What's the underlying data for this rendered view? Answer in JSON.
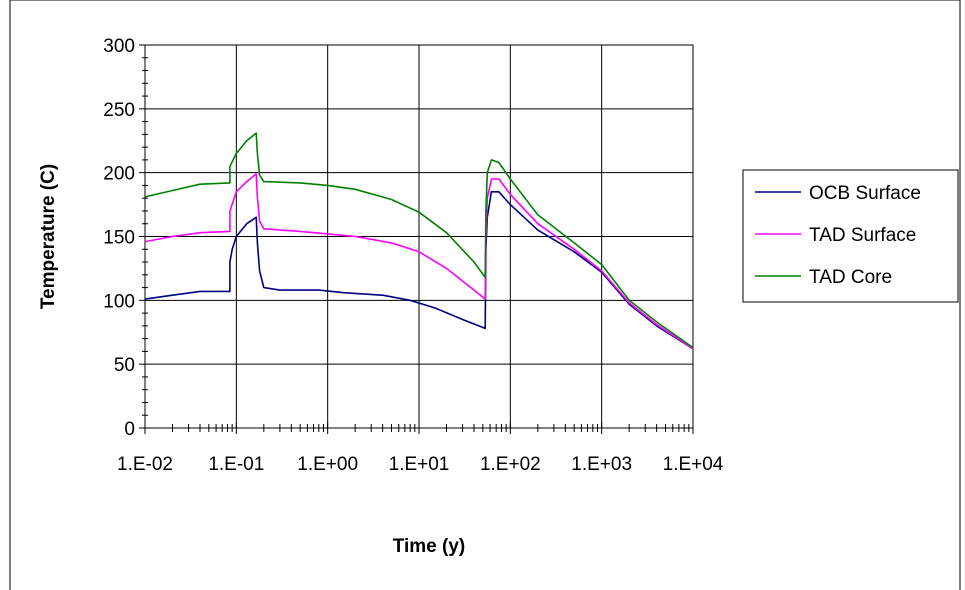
{
  "chart_data": {
    "type": "line",
    "xscale": "log",
    "xlabel": "Time (y)",
    "ylabel": "Temperature (C)",
    "xlim": [
      0.01,
      10000
    ],
    "ylim": [
      0,
      300
    ],
    "xticks": [
      {
        "value": 0.01,
        "label": "1.E-02"
      },
      {
        "value": 0.1,
        "label": "1.E-01"
      },
      {
        "value": 1,
        "label": "1.E+00"
      },
      {
        "value": 10,
        "label": "1.E+01"
      },
      {
        "value": 100,
        "label": "1.E+02"
      },
      {
        "value": 1000,
        "label": "1.E+03"
      },
      {
        "value": 10000,
        "label": "1.E+04"
      }
    ],
    "yticks": [
      {
        "value": 0,
        "label": "0"
      },
      {
        "value": 50,
        "label": "50"
      },
      {
        "value": 100,
        "label": "100"
      },
      {
        "value": 150,
        "label": "150"
      },
      {
        "value": 200,
        "label": "200"
      },
      {
        "value": 250,
        "label": "250"
      },
      {
        "value": 300,
        "label": "300"
      }
    ],
    "grid": true,
    "legend_position": "right",
    "series": [
      {
        "name": "OCB Surface",
        "color": "#000080",
        "x": [
          0.01,
          0.02,
          0.04,
          0.085,
          0.085,
          0.09,
          0.1,
          0.13,
          0.165,
          0.17,
          0.18,
          0.2,
          0.3,
          0.8,
          1.5,
          4,
          8,
          15,
          30,
          53,
          54,
          56,
          62,
          75,
          100,
          200,
          500,
          1000,
          2000,
          4000,
          10000
        ],
        "y": [
          101,
          104,
          107,
          107,
          130,
          140,
          150,
          160,
          165,
          145,
          123,
          110,
          108,
          108,
          106,
          104,
          100,
          94,
          85,
          78,
          140,
          165,
          185,
          185,
          175,
          155,
          138,
          122,
          97,
          80,
          62
        ]
      },
      {
        "name": "TAD Surface",
        "color": "#ff00ff",
        "x": [
          0.01,
          0.02,
          0.04,
          0.085,
          0.085,
          0.1,
          0.13,
          0.165,
          0.17,
          0.18,
          0.2,
          0.5,
          1,
          2,
          5,
          10,
          20,
          40,
          53,
          54,
          56,
          62,
          75,
          100,
          200,
          500,
          1000,
          2000,
          4000,
          10000
        ],
        "y": [
          146,
          150,
          153,
          154,
          170,
          185,
          193,
          199,
          180,
          162,
          156,
          154,
          152,
          150,
          145,
          138,
          125,
          108,
          101,
          150,
          180,
          195,
          195,
          183,
          160,
          140,
          123,
          98,
          81,
          62
        ]
      },
      {
        "name": "TAD Core",
        "color": "#008000",
        "x": [
          0.01,
          0.02,
          0.04,
          0.085,
          0.085,
          0.1,
          0.13,
          0.165,
          0.17,
          0.18,
          0.2,
          0.5,
          1,
          2,
          5,
          10,
          20,
          40,
          53,
          54,
          56,
          62,
          75,
          100,
          200,
          500,
          1000,
          2000,
          4000,
          10000
        ],
        "y": [
          181,
          186,
          191,
          192,
          205,
          215,
          225,
          231,
          215,
          198,
          193,
          192,
          190,
          187,
          179,
          169,
          153,
          130,
          118,
          170,
          200,
          210,
          208,
          195,
          167,
          145,
          128,
          100,
          83,
          63
        ]
      }
    ]
  }
}
